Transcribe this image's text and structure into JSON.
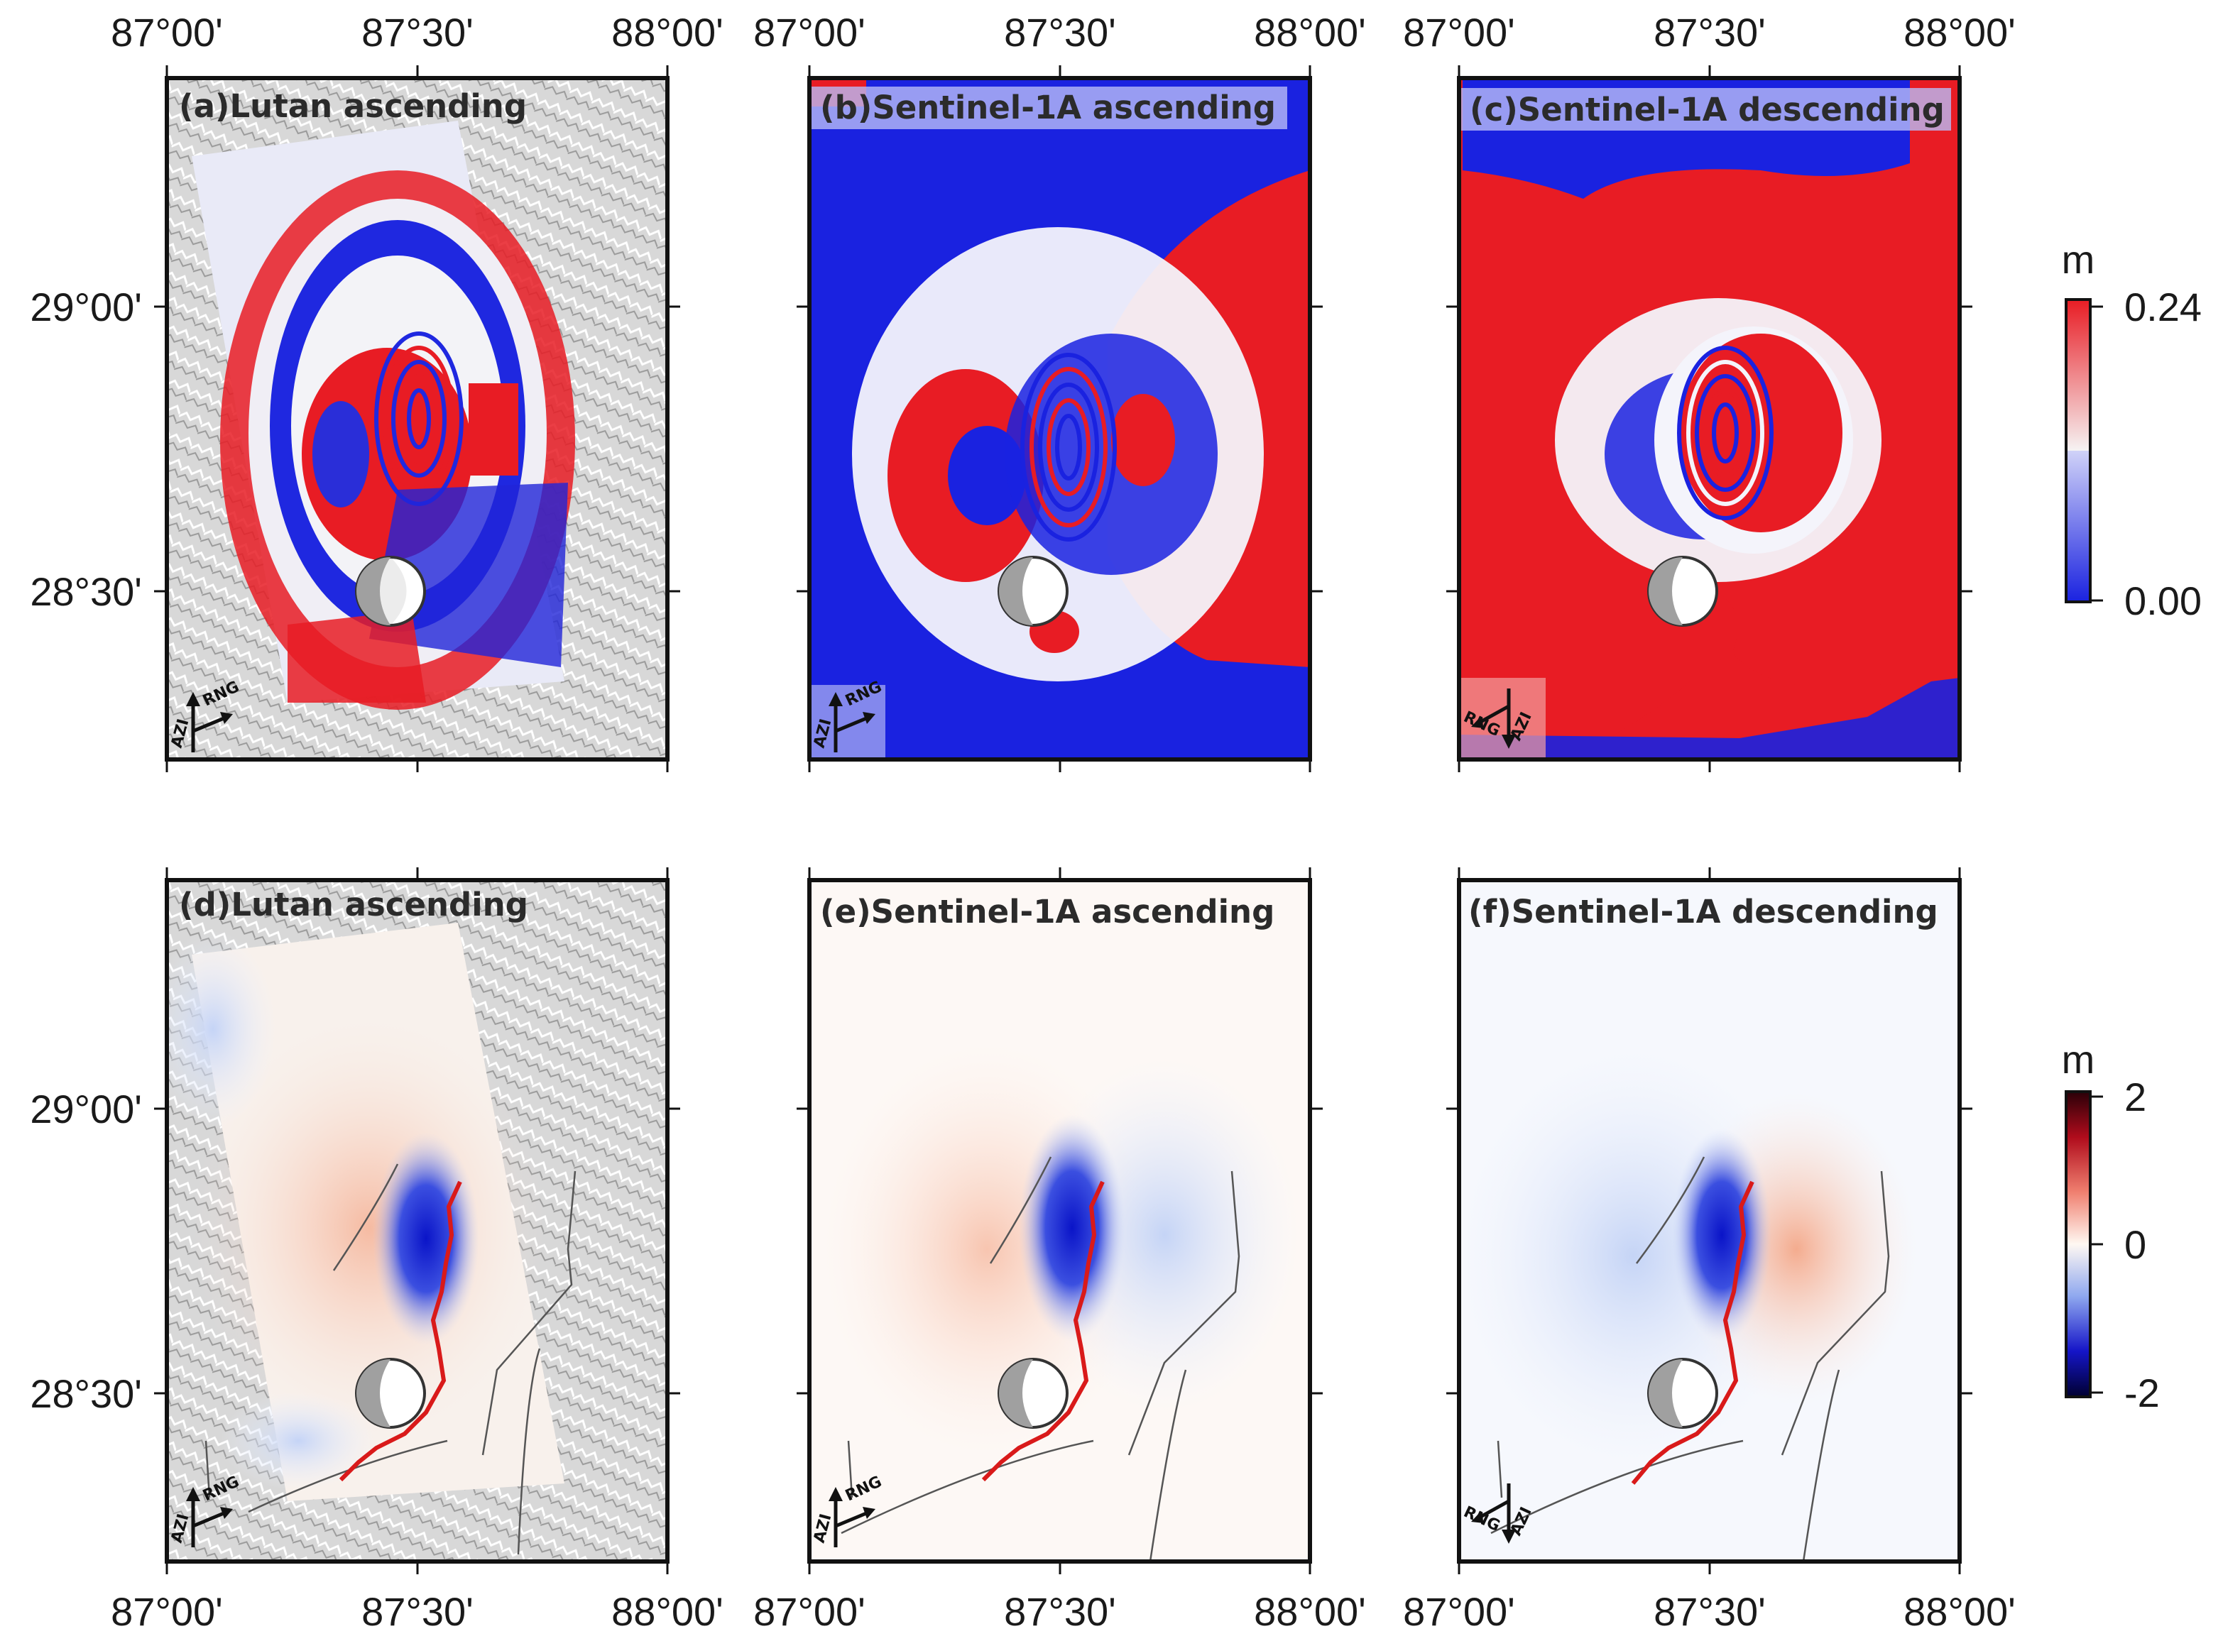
{
  "figure": {
    "x_axis": {
      "ticks": [
        "87°00'",
        "87°30'",
        "88°00'"
      ]
    },
    "y_axis": {
      "ticks": [
        "29°00'",
        "28°30'"
      ]
    },
    "panels": [
      {
        "id": "a",
        "title": "(a)Lutan ascending",
        "row": "interferogram",
        "look": "ascending"
      },
      {
        "id": "b",
        "title": "(b)Sentinel-1A ascending",
        "row": "interferogram",
        "look": "ascending"
      },
      {
        "id": "c",
        "title": "(c)Sentinel-1A descending",
        "row": "interferogram",
        "look": "descending"
      },
      {
        "id": "d",
        "title": "(d)Lutan ascending",
        "row": "displacement",
        "look": "ascending"
      },
      {
        "id": "e",
        "title": "(e)Sentinel-1A ascending",
        "row": "displacement",
        "look": "ascending"
      },
      {
        "id": "f",
        "title": "(f)Sentinel-1A descending",
        "row": "displacement",
        "look": "descending"
      }
    ],
    "direction_labels": {
      "range": "RNG",
      "azimuth": "AZI"
    },
    "colorbar_top": {
      "unit": "m",
      "max": "0.24",
      "min": "0.00"
    },
    "colorbar_bottom": {
      "unit": "m",
      "max": "2",
      "mid": "0",
      "min": "-2"
    },
    "colors": {
      "positive": "#e81c24",
      "negative": "#1a22e0",
      "fault_rupture": "#d91a1a",
      "fault_line": "#555555"
    }
  }
}
